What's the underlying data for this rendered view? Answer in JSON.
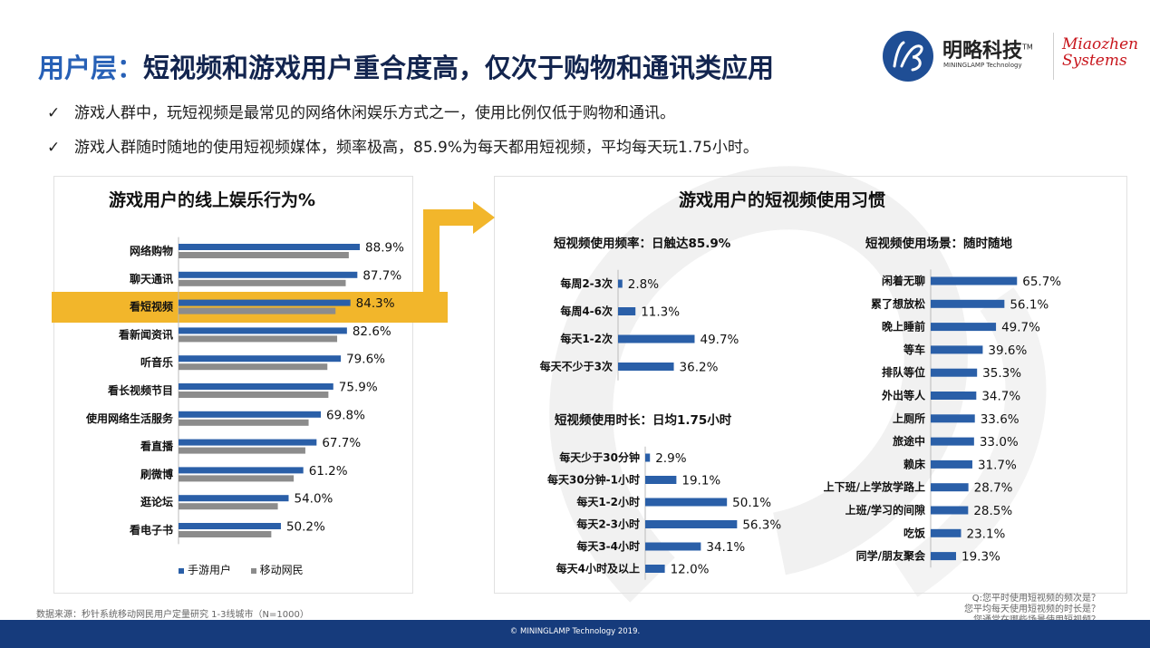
{
  "title": {
    "prefix": "用户层：",
    "main": "短视频和游戏用户重合度高，仅次于购物和通讯类应用"
  },
  "bullets": [
    "游戏人群中，玩短视频是最常见的网络休闲娱乐方式之一，使用比例仅低于购物和通讯。",
    "游戏人群随时随地的使用短视频媒体，频率极高，85.9%为每天都用短视频，平均每天玩1.75小时。"
  ],
  "logo": {
    "cn": "明略科技",
    "tm": "TM",
    "en": "MININGLAMP Technology",
    "mz_line1": "Miaozhen",
    "mz_line2": "Systems"
  },
  "colors": {
    "primary": "#2a5fa8",
    "secondary": "#8c8c8c",
    "highlight": "#f2b62b",
    "title": "#13254f",
    "accent": "#2760b6",
    "footer": "#163b7c"
  },
  "left_panel": {
    "title": "游戏用户的线上娱乐行为%",
    "highlight_label": "看短视频"
  },
  "right_panel": {
    "title": "游戏用户的短视频使用习惯"
  },
  "chart_data": [
    {
      "type": "bar",
      "orientation": "horizontal",
      "title": "游戏用户的线上娱乐行为%",
      "categories": [
        "网络购物",
        "聊天通讯",
        "看短视频",
        "看新闻资讯",
        "听音乐",
        "看长视频节目",
        "使用网络生活服务",
        "看直播",
        "刷微博",
        "逛论坛",
        "看电子书"
      ],
      "series": [
        {
          "name": "手游用户",
          "values": [
            88.9,
            87.7,
            84.3,
            82.6,
            79.6,
            75.9,
            69.8,
            67.7,
            61.2,
            54.0,
            50.2
          ],
          "labels": [
            "88.9%",
            "87.7%",
            "84.3%",
            "82.6%",
            "79.6%",
            "75.9%",
            "69.8%",
            "67.7%",
            "61.2%",
            "54.0%",
            "50.2%"
          ]
        },
        {
          "name": "移动网民",
          "values": [
            83.5,
            82.0,
            77.0,
            77.8,
            73.0,
            73.5,
            63.8,
            62.2,
            56.5,
            48.7,
            45.5
          ]
        }
      ],
      "legend": [
        "手游用户",
        "移动网民"
      ],
      "xlim": [
        0,
        100
      ]
    },
    {
      "type": "bar",
      "orientation": "horizontal",
      "title": "短视频使用频率：日触达85.9%",
      "categories": [
        "每周2-3次",
        "每周4-6次",
        "每天1-2次",
        "每天不少于3次"
      ],
      "values": [
        2.8,
        11.3,
        49.7,
        36.2
      ],
      "labels": [
        "2.8%",
        "11.3%",
        "49.7%",
        "36.2%"
      ],
      "xlim": [
        0,
        100
      ]
    },
    {
      "type": "bar",
      "orientation": "horizontal",
      "title": "短视频使用时长：日均1.75小时",
      "categories": [
        "每天少于30分钟",
        "每天30分钟-1小时",
        "每天1-2小时",
        "每天2-3小时",
        "每天3-4小时",
        "每天4小时及以上"
      ],
      "values": [
        2.9,
        19.1,
        50.1,
        56.3,
        34.1,
        12.0
      ],
      "labels": [
        "2.9%",
        "19.1%",
        "50.1%",
        "56.3%",
        "34.1%",
        "12.0%"
      ],
      "xlim": [
        0,
        100
      ]
    },
    {
      "type": "bar",
      "orientation": "horizontal",
      "title": "短视频使用场景：随时随地",
      "categories": [
        "闲着无聊",
        "累了想放松",
        "晚上睡前",
        "等车",
        "排队等位",
        "外出等人",
        "上厕所",
        "旅途中",
        "赖床",
        "上下班/上学放学路上",
        "上班/学习的间隙",
        "吃饭",
        "同学/朋友聚会"
      ],
      "values": [
        65.7,
        56.1,
        49.7,
        39.6,
        35.3,
        34.7,
        33.6,
        33.0,
        31.7,
        28.7,
        28.5,
        23.1,
        19.3
      ],
      "labels": [
        "65.7%",
        "56.1%",
        "49.7%",
        "39.6%",
        "35.3%",
        "34.7%",
        "33.6%",
        "33.0%",
        "31.7%",
        "28.7%",
        "28.5%",
        "23.1%",
        "19.3%"
      ],
      "xlim": [
        0,
        100
      ]
    }
  ],
  "source": "数据来源：秒针系统移动网民用户定量研究 1-3线城市（N=1000）",
  "questions": [
    "Q:您平时使用短视频的频次是？",
    "您平均每天使用短视频的时长是？",
    "您通常在哪些场景使用短视频？"
  ],
  "footer": "© MININGLAMP Technology 2019."
}
